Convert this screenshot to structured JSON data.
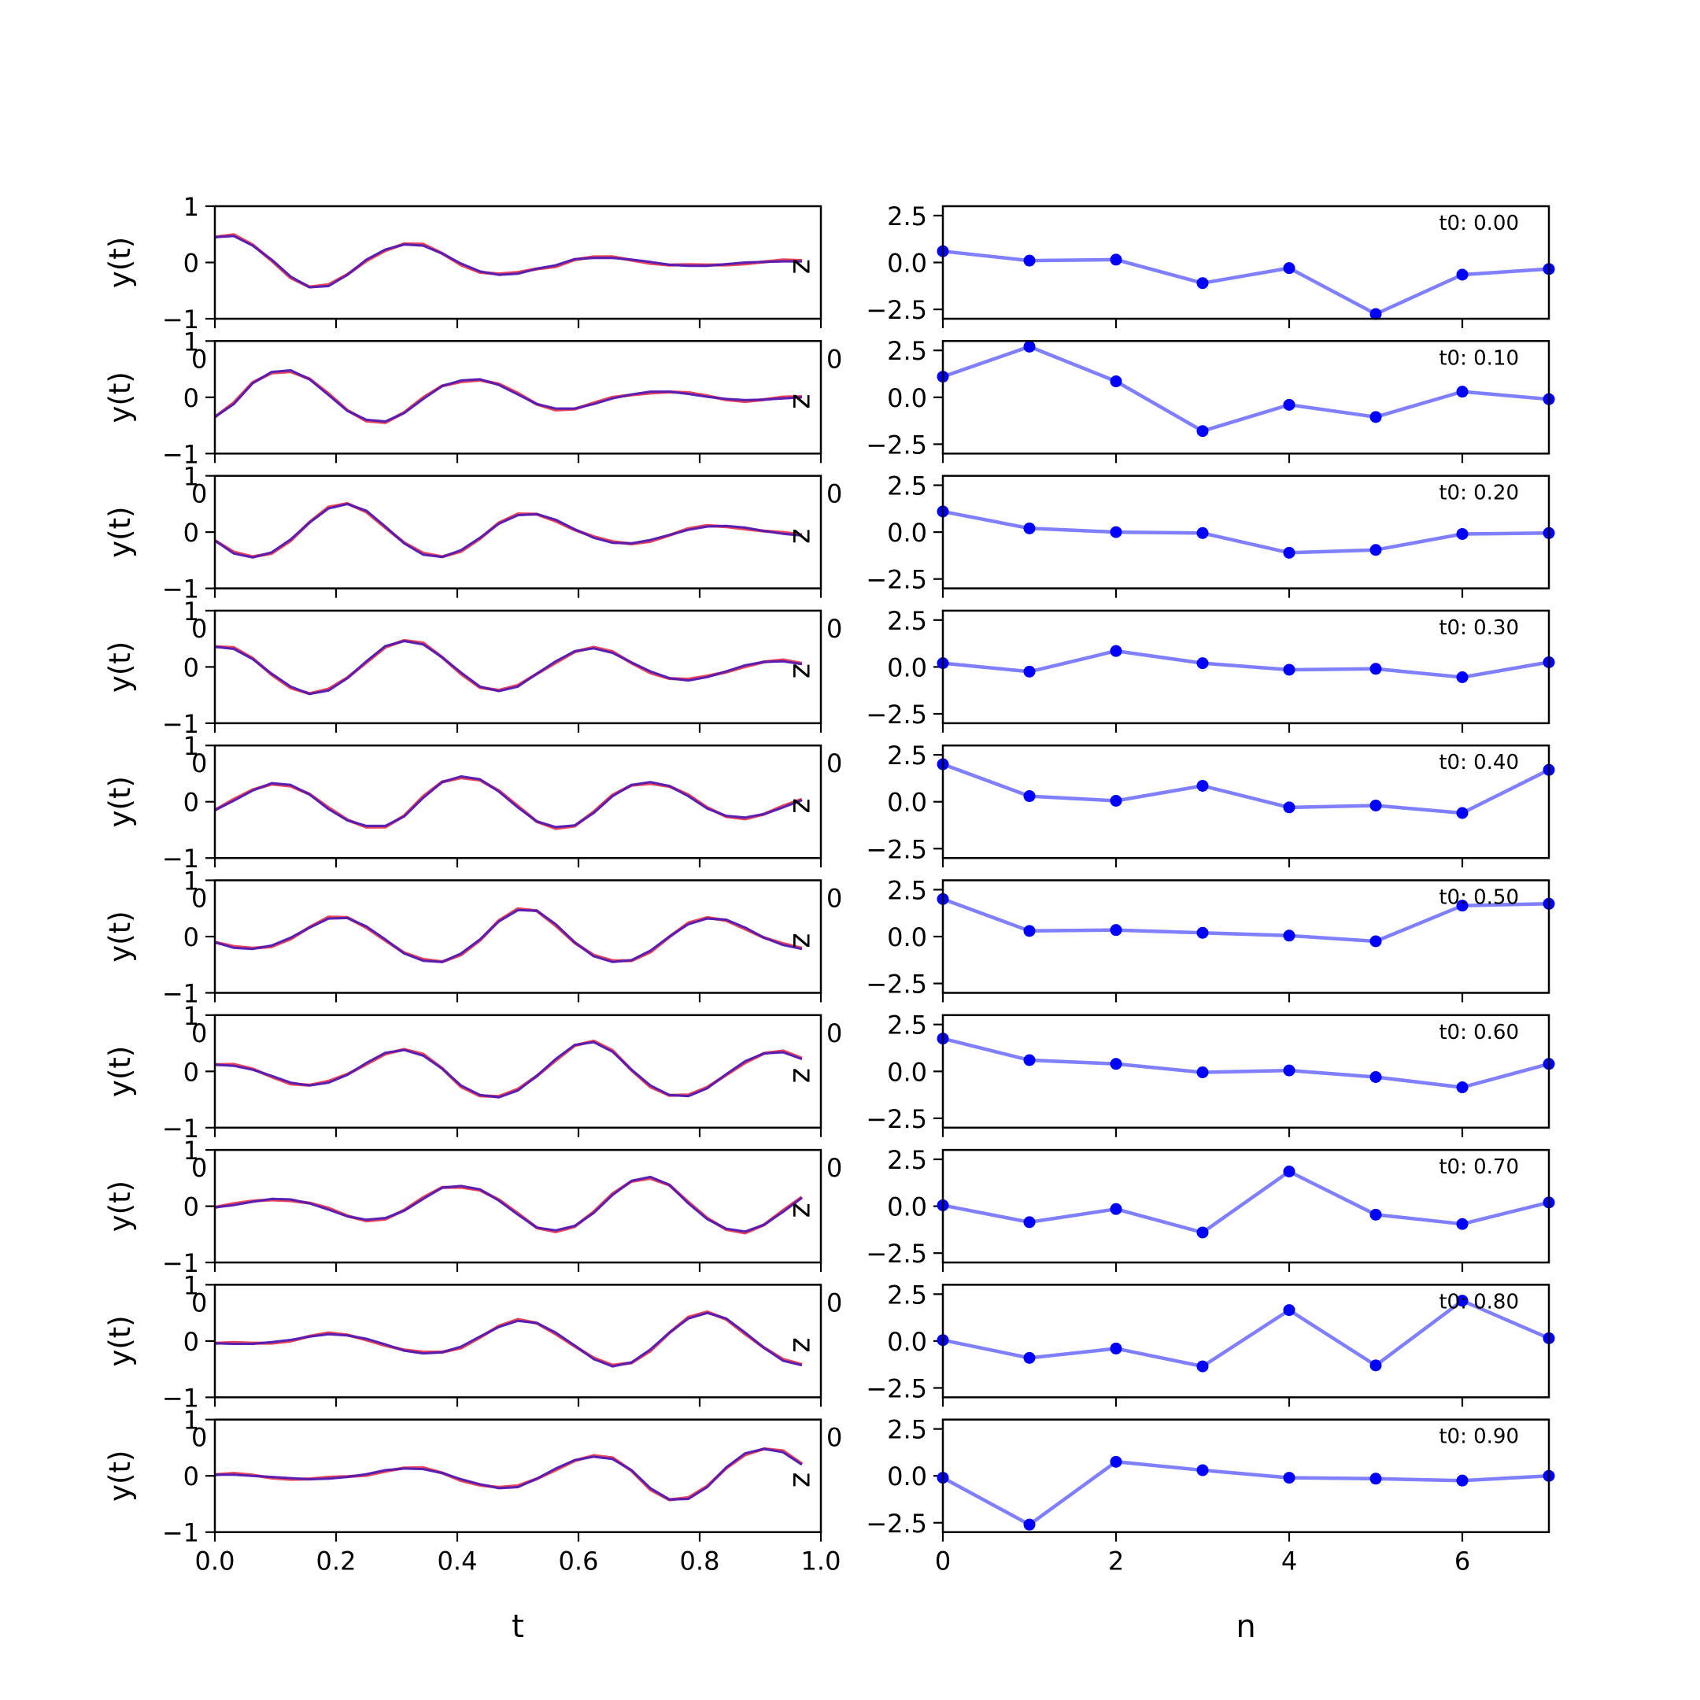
{
  "chart_data": {
    "type": "line",
    "left_column": {
      "xlabel": "t",
      "ylabel": "y(t)",
      "side_label": "z",
      "xlim": [
        0,
        1
      ],
      "ylim": [
        -1,
        1
      ],
      "xticks": [
        "0.0",
        "0.2",
        "0.4",
        "0.6",
        "0.8",
        "1.0"
      ],
      "yticks": [
        "−1",
        "0",
        "1"
      ],
      "overlap_label": "0",
      "colors": {
        "series_a": "#e8465a",
        "series_b": "#1a1aff",
        "blend": "#7a1a80"
      },
      "t": [
        0.0,
        0.03125,
        0.0625,
        0.09375,
        0.125,
        0.15625,
        0.1875,
        0.21875,
        0.25,
        0.28125,
        0.3125,
        0.34375,
        0.375,
        0.40625,
        0.4375,
        0.46875,
        0.5,
        0.53125,
        0.5625,
        0.59375,
        0.625,
        0.65625,
        0.6875,
        0.71875,
        0.75,
        0.78125,
        0.8125,
        0.84375,
        0.875,
        0.90625,
        0.9375,
        0.96875
      ],
      "panels": [
        {
          "y": [
            0.45,
            0.47,
            0.3,
            0.05,
            -0.25,
            -0.44,
            -0.42,
            -0.22,
            0.05,
            0.23,
            0.32,
            0.3,
            0.16,
            -0.02,
            -0.16,
            -0.22,
            -0.2,
            -0.11,
            -0.05,
            0.06,
            0.08,
            0.08,
            0.05,
            0.01,
            -0.04,
            -0.06,
            -0.06,
            -0.03,
            0.0,
            0.01,
            0.02,
            0.02
          ]
        },
        {
          "y": [
            -0.35,
            -0.12,
            0.25,
            0.45,
            0.48,
            0.32,
            0.04,
            -0.24,
            -0.4,
            -0.43,
            -0.28,
            -0.03,
            0.2,
            0.3,
            0.32,
            0.22,
            0.05,
            -0.12,
            -0.2,
            -0.2,
            -0.12,
            -0.02,
            0.05,
            0.1,
            0.1,
            0.06,
            0.01,
            -0.03,
            -0.05,
            -0.04,
            -0.02,
            0.0
          ]
        },
        {
          "y": [
            -0.15,
            -0.38,
            -0.45,
            -0.36,
            -0.13,
            0.17,
            0.42,
            0.5,
            0.38,
            0.1,
            -0.2,
            -0.4,
            -0.44,
            -0.32,
            -0.1,
            0.15,
            0.3,
            0.32,
            0.22,
            0.05,
            -0.1,
            -0.19,
            -0.2,
            -0.14,
            -0.05,
            0.04,
            0.1,
            0.11,
            0.08,
            0.02,
            -0.03,
            -0.06
          ]
        },
        {
          "y": [
            0.36,
            0.32,
            0.14,
            -0.12,
            -0.35,
            -0.48,
            -0.42,
            -0.2,
            0.1,
            0.37,
            0.46,
            0.4,
            0.17,
            -0.1,
            -0.35,
            -0.43,
            -0.35,
            -0.12,
            0.1,
            0.28,
            0.33,
            0.25,
            0.08,
            -0.08,
            -0.2,
            -0.24,
            -0.18,
            -0.08,
            0.03,
            0.09,
            0.1,
            0.05
          ]
        },
        {
          "y": [
            -0.15,
            0.02,
            0.2,
            0.33,
            0.3,
            0.13,
            -0.13,
            -0.33,
            -0.43,
            -0.43,
            -0.26,
            0.07,
            0.35,
            0.45,
            0.4,
            0.18,
            -0.1,
            -0.35,
            -0.45,
            -0.42,
            -0.2,
            0.1,
            0.3,
            0.35,
            0.28,
            0.1,
            -0.12,
            -0.25,
            -0.28,
            -0.22,
            -0.1,
            0.03
          ]
        },
        {
          "y": [
            -0.1,
            -0.2,
            -0.22,
            -0.16,
            -0.02,
            0.16,
            0.32,
            0.33,
            0.18,
            -0.05,
            -0.3,
            -0.43,
            -0.45,
            -0.3,
            -0.05,
            0.27,
            0.47,
            0.46,
            0.22,
            -0.1,
            -0.35,
            -0.45,
            -0.42,
            -0.25,
            0.0,
            0.22,
            0.32,
            0.3,
            0.16,
            -0.02,
            -0.15,
            -0.22
          ]
        },
        {
          "y": [
            0.12,
            0.1,
            0.03,
            -0.08,
            -0.2,
            -0.25,
            -0.2,
            -0.06,
            0.15,
            0.33,
            0.38,
            0.28,
            0.05,
            -0.25,
            -0.42,
            -0.46,
            -0.34,
            -0.08,
            0.22,
            0.47,
            0.52,
            0.35,
            0.03,
            -0.25,
            -0.42,
            -0.44,
            -0.3,
            -0.05,
            0.18,
            0.32,
            0.34,
            0.22
          ]
        },
        {
          "y": [
            -0.02,
            0.02,
            0.08,
            0.13,
            0.12,
            0.05,
            -0.06,
            -0.18,
            -0.24,
            -0.21,
            -0.08,
            0.13,
            0.33,
            0.36,
            0.3,
            0.1,
            -0.15,
            -0.38,
            -0.43,
            -0.35,
            -0.12,
            0.2,
            0.45,
            0.52,
            0.38,
            0.05,
            -0.23,
            -0.4,
            -0.45,
            -0.33,
            -0.1,
            0.15
          ]
        },
        {
          "y": [
            -0.04,
            -0.05,
            -0.05,
            -0.02,
            0.02,
            0.08,
            0.12,
            0.1,
            0.04,
            -0.06,
            -0.17,
            -0.22,
            -0.2,
            -0.1,
            0.08,
            0.25,
            0.36,
            0.32,
            0.15,
            -0.08,
            -0.32,
            -0.45,
            -0.38,
            -0.15,
            0.15,
            0.4,
            0.5,
            0.4,
            0.15,
            -0.12,
            -0.35,
            -0.43
          ]
        },
        {
          "y": [
            0.02,
            0.02,
            0.0,
            -0.02,
            -0.04,
            -0.06,
            -0.05,
            -0.02,
            0.03,
            0.1,
            0.13,
            0.12,
            0.05,
            -0.06,
            -0.15,
            -0.22,
            -0.2,
            -0.05,
            0.13,
            0.28,
            0.34,
            0.3,
            0.1,
            -0.22,
            -0.42,
            -0.41,
            -0.2,
            0.15,
            0.4,
            0.48,
            0.42,
            0.2
          ]
        }
      ]
    },
    "right_column": {
      "xlabel": "n",
      "xlim": [
        0,
        7
      ],
      "ylim": [
        -3,
        3
      ],
      "xticks": [
        "0",
        "2",
        "4",
        "6"
      ],
      "yticks": [
        "2.5",
        "0.0",
        "−2.5"
      ],
      "overlap_label": "0",
      "colors": {
        "line": "#7f7fff",
        "marker": "#0000ff"
      },
      "n": [
        0,
        1,
        2,
        3,
        4,
        5,
        6,
        7
      ],
      "panels": [
        {
          "label": "t0: 0.00",
          "values": [
            0.6,
            0.1,
            0.15,
            -1.1,
            -0.3,
            -2.75,
            -0.65,
            -0.35
          ]
        },
        {
          "label": "t0: 0.10",
          "values": [
            1.1,
            2.7,
            0.85,
            -1.8,
            -0.4,
            -1.05,
            0.3,
            -0.1
          ]
        },
        {
          "label": "t0: 0.20",
          "values": [
            1.1,
            0.2,
            0.0,
            -0.05,
            -1.1,
            -0.95,
            -0.1,
            -0.05
          ]
        },
        {
          "label": "t0: 0.30",
          "values": [
            0.2,
            -0.25,
            0.85,
            0.2,
            -0.15,
            -0.1,
            -0.55,
            0.25
          ]
        },
        {
          "label": "t0: 0.40",
          "values": [
            2.0,
            0.3,
            0.05,
            0.85,
            -0.3,
            -0.2,
            -0.6,
            1.7
          ]
        },
        {
          "label": "t0: 0.50",
          "values": [
            2.0,
            0.3,
            0.35,
            0.2,
            0.05,
            -0.25,
            1.65,
            1.75
          ]
        },
        {
          "label": "t0: 0.60",
          "values": [
            1.75,
            0.6,
            0.4,
            -0.05,
            0.05,
            -0.3,
            -0.85,
            0.4
          ]
        },
        {
          "label": "t0: 0.70",
          "values": [
            0.05,
            -0.85,
            -0.15,
            -1.4,
            1.85,
            -0.45,
            -0.95,
            0.2
          ]
        },
        {
          "label": "t0: 0.80",
          "values": [
            0.05,
            -0.9,
            -0.4,
            -1.35,
            1.65,
            -1.3,
            2.15,
            0.15
          ]
        },
        {
          "label": "t0: 0.90",
          "values": [
            -0.1,
            -2.6,
            0.75,
            0.3,
            -0.1,
            -0.15,
            -0.25,
            0.0
          ]
        }
      ]
    }
  }
}
